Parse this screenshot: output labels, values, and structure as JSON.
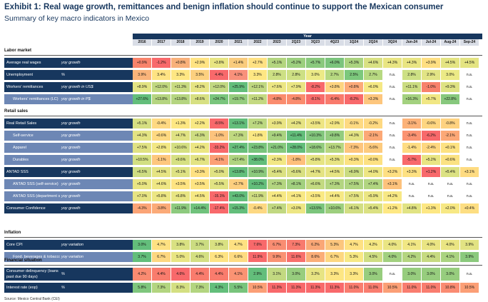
{
  "header": {
    "title": "Exhibit 1: Real wage growth, remittances and benign inflation should continue to support the Mexican consumer",
    "subtitle": "Summary of key macro indicators in Mexico",
    "year_label": "Year",
    "periods": [
      "2016",
      "2017",
      "2018",
      "2019",
      "2020",
      "2021",
      "2022",
      "2023",
      "2Q23",
      "3Q23",
      "4Q23",
      "1Q24",
      "2Q24",
      "3Q24",
      "Jun-24",
      "Jul-24",
      "Aug-24",
      "Sep-24"
    ]
  },
  "footer": {
    "source": "Source: Mexico Central Bank (CEI)"
  },
  "sections": [
    {
      "title": "Labor market",
      "rows": [
        {
          "label": "Average real wages",
          "unit": "yoy growth",
          "style": "main",
          "values": [
            "+0.9%",
            "-1.2%",
            "+0.8%",
            "+2.9%",
            "+3.8%",
            "+1.4%",
            "+2.7%",
            "+5.1%",
            "+5.2%",
            "+5.7%",
            "+6.0%",
            "+5.3%",
            "+4.6%",
            "+4.3%",
            "+4.3%",
            "+3.9%",
            "+4.5%",
            "+4.5%"
          ],
          "colors": [
            "#f8836b",
            "#f8696b",
            "#f8b07a",
            "#ffe383",
            "#e8e582",
            "#f9cb7d",
            "#ffe183",
            "#b3d57f",
            "#9ccf7e",
            "#8ac97d",
            "#7bc47c",
            "#aad37f",
            "#d9e182",
            "#e9e582",
            "#e9e582",
            "#fedf82",
            "#e4e482",
            "#e4e482"
          ]
        },
        {
          "label": "Unemployment",
          "unit": "%",
          "style": "main",
          "values": [
            "3.9%",
            "3.4%",
            "3.3%",
            "3.5%",
            "4.4%",
            "4.1%",
            "3.3%",
            "2.8%",
            "2.8%",
            "3.0%",
            "2.7%",
            "2.5%",
            "2.7%",
            "n.a.",
            "2.8%",
            "2.9%",
            "3.0%",
            "n.a."
          ],
          "colors": [
            "#fab47a",
            "#fee383",
            "#fee783",
            "#fcd07f",
            "#f8696b",
            "#f9917b",
            "#fee783",
            "#cde084",
            "#cde084",
            "#ecea86",
            "#b7d981",
            "#7cc87c",
            "#b7d981",
            "#ffffff",
            "#cde084",
            "#e2e485",
            "#ecea86",
            "#ffffff"
          ]
        },
        {
          "label": "Workers' remittances",
          "unit": "yoy growth in US$",
          "style": "main",
          "values": [
            "+8.9%",
            "+12.0%",
            "+11.3%",
            "+8.2%",
            "+12.0%",
            "+25.9%",
            "+12.1%",
            "+7.6%",
            "+7.9%",
            "-8.2%",
            "+3.8%",
            "+0.8%",
            "+6.0%",
            "n.a.",
            "+11.1%",
            "-1.0%",
            "+9.3%",
            "n.a."
          ],
          "colors": [
            "#e2e383",
            "#c1d881",
            "#c9db81",
            "#e6e483",
            "#c1d881",
            "#63be7b",
            "#c0d881",
            "#ece683",
            "#eae583",
            "#f8696b",
            "#fed480",
            "#fcaa78",
            "#f5e884",
            "#ffffff",
            "#cbdc81",
            "#f8816b",
            "#dfe283",
            "#ffffff"
          ]
        },
        {
          "label": "Workers' remittances (LC)",
          "unit": "yoy growth in P$",
          "style": "sub",
          "values": [
            "+27.6%",
            "+13.8%",
            "+13.8%",
            "+8.6%",
            "+24.7%",
            "+19.7%",
            "+11.2%",
            "-4.8%",
            "-4.8%",
            "-8.1%",
            "-6.4%",
            "-8.2%",
            "+3.3%",
            "n.a.",
            "+16.3%",
            "+5.7%",
            "+22.8%",
            "n.a."
          ],
          "colors": [
            "#63be7b",
            "#b5d580",
            "#b5d580",
            "#d7e082",
            "#79c57c",
            "#95cd7e",
            "#c4d981",
            "#fa8c6e",
            "#fa8c6e",
            "#f86c6b",
            "#f97a6c",
            "#f8696b",
            "#fdc67d",
            "#ffffff",
            "#a3d17f",
            "#f1e784",
            "#87c87d",
            "#ffffff"
          ]
        }
      ]
    },
    {
      "title": "Retail sales",
      "rows": [
        {
          "label": "Real Retail Sales",
          "unit": "yoy growth",
          "style": "main",
          "values": [
            "+5.1%",
            "-0.4%",
            "+1.3%",
            "+2.2%",
            "-8.5%",
            "+13.1%",
            "+7.2%",
            "+3.9%",
            "+4.2%",
            "+3.5%",
            "+2.9%",
            "-0.1%",
            "-0.2%",
            "n.a.",
            "-3.1%",
            "-0.6%",
            "-0.8%",
            "n.a."
          ],
          "colors": [
            "#d6df82",
            "#fed982",
            "#fee783",
            "#f8e883",
            "#f8696b",
            "#63be7b",
            "#bcd881",
            "#e9e483",
            "#e6e383",
            "#eee583",
            "#f4e683",
            "#feda82",
            "#fed981",
            "#ffffff",
            "#fcb278",
            "#fed681",
            "#fed280",
            "#ffffff"
          ]
        },
        {
          "label": "Self-service",
          "unit": "yoy growth",
          "style": "sub",
          "values": [
            "+4.3%",
            "+0.6%",
            "+4.7%",
            "+6.3%",
            "-1.0%",
            "+7.3%",
            "+1.8%",
            "+9.4%",
            "+11.4%",
            "+10.3%",
            "+9.8%",
            "+4.3%",
            "-2.1%",
            "n.a.",
            "-3.4%",
            "-6.2%",
            "-2.1%",
            "n.a."
          ],
          "colors": [
            "#e3e383",
            "#fed981",
            "#e0e283",
            "#cedd82",
            "#fdc37d",
            "#c0d981",
            "#fbe883",
            "#a9d27f",
            "#63be7b",
            "#83c77d",
            "#93cc7e",
            "#e3e383",
            "#fca876",
            "#ffffff",
            "#fb9372",
            "#f8696b",
            "#fca876",
            "#ffffff"
          ]
        },
        {
          "label": "Apparel",
          "unit": "yoy growth",
          "style": "sub",
          "values": [
            "+7.5%",
            "+2.8%",
            "+10.6%",
            "+4.2%",
            "-33.2%",
            "+27.4%",
            "+23.8%",
            "+21.0%",
            "+28.0%",
            "+18.6%",
            "+13.7%",
            "-7.3%",
            "-5.6%",
            "n.a.",
            "-1.4%",
            "-2.4%",
            "+0.1%",
            "n.a."
          ],
          "colors": [
            "#e0e283",
            "#f2e784",
            "#d4df82",
            "#ece683",
            "#f8696b",
            "#67bf7c",
            "#79c47c",
            "#87c97d",
            "#63be7b",
            "#93cc7e",
            "#b7d680",
            "#fdc57d",
            "#fdcb7e",
            "#ffffff",
            "#fedc82",
            "#fed780",
            "#fde282",
            "#ffffff"
          ]
        },
        {
          "label": "Durables",
          "unit": "yoy growth",
          "style": "sub",
          "values": [
            "+10.5%",
            "-1.1%",
            "+9.6%",
            "+6.7%",
            "-4.1%",
            "+17.4%",
            "+38.0%",
            "+2.3%",
            "-1.8%",
            "+5.8%",
            "+5.3%",
            "+0.3%",
            "+0.0%",
            "n.a.",
            "-5.7%",
            "+5.2%",
            "+0.6%",
            "n.a."
          ],
          "colors": [
            "#d2df82",
            "#fec77d",
            "#d6e082",
            "#e3e383",
            "#fca075",
            "#b0d480",
            "#63be7b",
            "#f2e784",
            "#febf7b",
            "#e6e483",
            "#e8e483",
            "#fce282",
            "#fde182",
            "#ffffff",
            "#f8696b",
            "#e9e583",
            "#fbe282",
            "#ffffff"
          ]
        },
        {
          "label": "ANTAD SSS",
          "unit": "yoy growth",
          "style": "main",
          "values": [
            "+6.5%",
            "+4.5%",
            "+5.1%",
            "+3.3%",
            "+5.0%",
            "+13.8%",
            "+10.9%",
            "+5.4%",
            "+5.6%",
            "+4.7%",
            "+4.5%",
            "+6.9%",
            "+4.0%",
            "+3.2%",
            "+3.3%",
            "+1.2%",
            "+5.4%",
            "+3.1%"
          ],
          "colors": [
            "#cedd82",
            "#e6e483",
            "#dee283",
            "#fee182",
            "#e0e283",
            "#63be7b",
            "#8bc97d",
            "#dbe182",
            "#d9e082",
            "#e4e383",
            "#e6e483",
            "#cadc81",
            "#ede683",
            "#fedf82",
            "#fee182",
            "#f8696b",
            "#dbe182",
            "#fedb81"
          ]
        },
        {
          "label": "ANTAD SSS (self-service)",
          "unit": "yoy growth",
          "style": "sub",
          "values": [
            "+5.0%",
            "+4.6%",
            "+3.5%",
            "+3.5%",
            "+5.5%",
            "+2.7%",
            "+10.2%",
            "+7.3%",
            "+8.1%",
            "+6.6%",
            "+7.3%",
            "+7.5%",
            "+7.4%",
            "+3.1%",
            "n.a.",
            "n.a.",
            "n.a.",
            "n.a."
          ],
          "colors": [
            "#e9e583",
            "#efe784",
            "#fee482",
            "#fee482",
            "#e1e383",
            "#fdcf7f",
            "#63be7b",
            "#b3d580",
            "#a2d07f",
            "#c3da81",
            "#b3d580",
            "#afd480",
            "#b1d580",
            "#fdc27c",
            "#ffffff",
            "#ffffff",
            "#ffffff",
            "#ffffff"
          ]
        },
        {
          "label": "ANTAD SSS (department stores)",
          "unit": "yoy growth",
          "style": "sub",
          "values": [
            "+7.0%",
            "+5.8%",
            "+6.8%",
            "+4.5%",
            "-15.1%",
            "+43.0%",
            "+11.9%",
            "+4.4%",
            "+4.1%",
            "+3.5%",
            "+4.4%",
            "+7.5%",
            "+5.9%",
            "+4.2%",
            "n.a.",
            "n.a.",
            "n.a.",
            "n.a."
          ],
          "colors": [
            "#e7e483",
            "#ece683",
            "#e8e583",
            "#f6e884",
            "#f8696b",
            "#63be7b",
            "#cfdd82",
            "#f6e884",
            "#f8e884",
            "#fae983",
            "#f6e884",
            "#e5e483",
            "#ebe683",
            "#f7e884",
            "#ffffff",
            "#ffffff",
            "#ffffff",
            "#ffffff"
          ]
        },
        {
          "label": "Consumer Confidence",
          "unit": "yoy growth",
          "style": "main",
          "values": [
            "-4.3%",
            "-3.8%",
            "+11.9%",
            "+14.4%",
            "-17.4%",
            "+15.3%",
            "-0.4%",
            "+7.4%",
            "+3.0%",
            "+13.5%",
            "+10.6%",
            "+6.1%",
            "+5.4%",
            "+1.2%",
            "+4.8%",
            "+1.3%",
            "+2.0%",
            "+0.4%"
          ],
          "colors": [
            "#fba476",
            "#fbaa78",
            "#8dca7e",
            "#70c27c",
            "#f8696b",
            "#63be7b",
            "#fdd882",
            "#c1d881",
            "#ede683",
            "#7bc57c",
            "#9dcf7e",
            "#d2de82",
            "#dbe182",
            "#fee883",
            "#e1e383",
            "#fde783",
            "#f7e884",
            "#fdde82"
          ]
        }
      ]
    },
    {
      "title": "Inflation",
      "rows": [
        {
          "label": "Core CPI",
          "unit": "yoy variation",
          "style": "main",
          "values": [
            "3.0%",
            "4.7%",
            "3.8%",
            "3.7%",
            "3.8%",
            "4.7%",
            "7.6%",
            "6.7%",
            "7.3%",
            "6.2%",
            "5.3%",
            "4.7%",
            "4.2%",
            "4.0%",
            "4.1%",
            "4.0%",
            "4.0%",
            "3.9%"
          ],
          "colors": [
            "#63be7b",
            "#fee182",
            "#d9e182",
            "#cbdc81",
            "#d9e182",
            "#fee182",
            "#f8696b",
            "#f98d72",
            "#f87a6e",
            "#faa776",
            "#fcc67d",
            "#fee182",
            "#f6e883",
            "#eae583",
            "#f1e784",
            "#eae583",
            "#eae583",
            "#e2e383"
          ]
        },
        {
          "label": "Food, beverages & tobacco",
          "unit": "yoy variation",
          "style": "sub",
          "values": [
            "3.7%",
            "6.7%",
            "5.0%",
            "4.6%",
            "6.3%",
            "6.6%",
            "11.9%",
            "9.9%",
            "11.6%",
            "8.6%",
            "6.7%",
            "5.3%",
            "4.5%",
            "4.0%",
            "4.2%",
            "4.4%",
            "4.1%",
            "3.9%"
          ],
          "colors": [
            "#63be7b",
            "#fdd780",
            "#e9e583",
            "#d4df82",
            "#fee383",
            "#fedb81",
            "#f8696b",
            "#fa9273",
            "#f86f6c",
            "#fbae78",
            "#fdd780",
            "#f7e884",
            "#cedd82",
            "#a1d07f",
            "#b4d580",
            "#c6da81",
            "#aad380",
            "#8bc97d"
          ]
        }
      ]
    },
    {
      "title": "Financial situation",
      "rows": [
        {
          "label": "Consumer delinquency (loans past due 90 days)",
          "unit": "%",
          "style": "main",
          "tall": true,
          "values": [
            "4.2%",
            "4.4%",
            "4.6%",
            "4.4%",
            "4.4%",
            "4.1%",
            "2.9%",
            "3.1%",
            "3.0%",
            "3.2%",
            "3.3%",
            "3.3%",
            "3.0%",
            "n.a.",
            "3.0%",
            "3.0%",
            "3.0%",
            "n.a."
          ],
          "colors": [
            "#f98b71",
            "#f97c6d",
            "#f8696b",
            "#f97c6d",
            "#f97c6d",
            "#fa9373",
            "#63be7b",
            "#c2d981",
            "#97cd7e",
            "#e7e483",
            "#fde683",
            "#fde683",
            "#97cd7e",
            "#ffffff",
            "#97cd7e",
            "#97cd7e",
            "#97cd7e",
            "#ffffff"
          ]
        },
        {
          "label": "Interest rate (eop)",
          "unit": "%",
          "style": "main",
          "values": [
            "5.8%",
            "7.3%",
            "8.3%",
            "7.3%",
            "4.3%",
            "5.5%",
            "10.5%",
            "11.3%",
            "11.3%",
            "11.3%",
            "11.3%",
            "11.0%",
            "11.0%",
            "10.5%",
            "11.0%",
            "11.0%",
            "10.8%",
            "10.5%"
          ],
          "colors": [
            "#7fc67d",
            "#b3d580",
            "#d4df82",
            "#b3d580",
            "#63be7b",
            "#78c47c",
            "#fb9f76",
            "#f8696b",
            "#f8696b",
            "#f8696b",
            "#f8696b",
            "#f97d6f",
            "#f97d6f",
            "#fb9f76",
            "#f97d6f",
            "#f97d6f",
            "#fa8b72",
            "#fb9f76"
          ]
        }
      ]
    }
  ]
}
